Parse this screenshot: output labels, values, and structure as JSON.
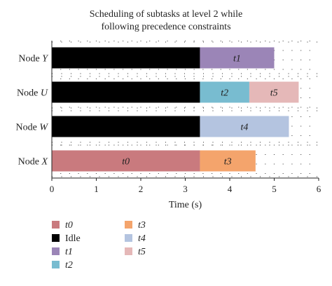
{
  "chart_data": {
    "type": "gantt",
    "title_lines": [
      "Scheduling  of subtasks at level 2 while",
      "following precedence constraints"
    ],
    "xlabel": "Time (s)",
    "xlim": [
      0,
      6
    ],
    "x_ticks": [
      0,
      1,
      2,
      3,
      4,
      5,
      6
    ],
    "grid": "dotted",
    "rows": [
      {
        "prefix": "Node ",
        "suffix": "Y",
        "segments": [
          {
            "task": "Idle",
            "start": 0,
            "end": 3.33
          },
          {
            "task": "t1",
            "start": 3.33,
            "end": 5.0
          }
        ]
      },
      {
        "prefix": "Node ",
        "suffix": "U",
        "segments": [
          {
            "task": "Idle",
            "start": 0,
            "end": 3.33
          },
          {
            "task": "t2",
            "start": 3.33,
            "end": 4.44
          },
          {
            "task": "t5",
            "start": 4.44,
            "end": 5.55
          }
        ]
      },
      {
        "prefix": "Node ",
        "suffix": "W",
        "segments": [
          {
            "task": "Idle",
            "start": 0,
            "end": 3.33
          },
          {
            "task": "t4",
            "start": 3.33,
            "end": 5.33
          }
        ]
      },
      {
        "prefix": "Node ",
        "suffix": "X",
        "segments": [
          {
            "task": "t0",
            "start": 0,
            "end": 3.33
          },
          {
            "task": "t3",
            "start": 3.33,
            "end": 4.58
          }
        ]
      }
    ],
    "tasks": {
      "t0": {
        "label": "t0",
        "italic": true,
        "color": "#c97a7e"
      },
      "Idle": {
        "label": "Idle",
        "italic": false,
        "color": "#000000"
      },
      "t1": {
        "label": "t1",
        "italic": true,
        "color": "#9b85b7"
      },
      "t2": {
        "label": "t2",
        "italic": true,
        "color": "#78bcd0"
      },
      "t3": {
        "label": "t3",
        "italic": true,
        "color": "#f4a46c"
      },
      "t4": {
        "label": "t4",
        "italic": true,
        "color": "#b4c4e0"
      },
      "t5": {
        "label": "t5",
        "italic": true,
        "color": "#e5b8b8"
      }
    },
    "legend": {
      "placement": "bottom",
      "columns": [
        [
          "t0",
          "Idle",
          "t1",
          "t2"
        ],
        [
          "t3",
          "t4",
          "t5"
        ]
      ]
    }
  }
}
